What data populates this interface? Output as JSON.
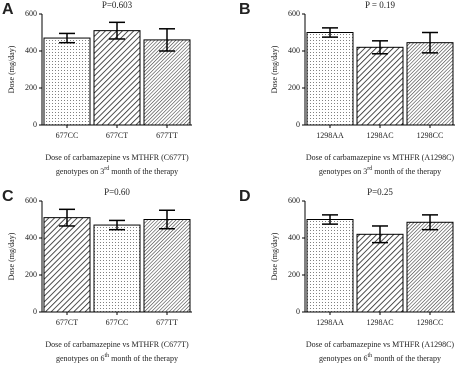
{
  "chart_data": [
    {
      "type": "bar",
      "panel": "A",
      "title": "P=0.603",
      "categories": [
        "677CC",
        "677CT",
        "677TT"
      ],
      "values": [
        470,
        510,
        460
      ],
      "errors": [
        25,
        45,
        60
      ],
      "patterns": [
        "dots",
        "hatch",
        "dense-hatch"
      ],
      "ylabel": "Dose (mg/day)",
      "xlabel": "Dose of carbamazepine vs MTHFR (C677T)",
      "xlabel_line2": [
        "genotypes on 3",
        "rd",
        " month of the therapy"
      ],
      "ylim": [
        0,
        600
      ],
      "yticks": [
        0,
        200,
        400,
        600
      ]
    },
    {
      "type": "bar",
      "panel": "B",
      "title": "P = 0.19",
      "categories": [
        "1298AA",
        "1298AC",
        "1298CC"
      ],
      "values": [
        500,
        420,
        445
      ],
      "errors": [
        25,
        35,
        55
      ],
      "patterns": [
        "dots",
        "hatch",
        "dense-hatch"
      ],
      "ylabel": "Dose (mg/day)",
      "xlabel": "Dose of carbamazepine vs MTHFR (A1298C)",
      "xlabel_line2": [
        "genotypes on 3",
        "rd",
        " month of the therapy"
      ],
      "ylim": [
        0,
        600
      ],
      "yticks": [
        0,
        200,
        400,
        600
      ]
    },
    {
      "type": "bar",
      "panel": "C",
      "title": "P=0.60",
      "categories": [
        "677CT",
        "677CC",
        "677TT"
      ],
      "values": [
        510,
        470,
        500
      ],
      "errors": [
        45,
        25,
        50
      ],
      "patterns": [
        "hatch",
        "dots",
        "dense-hatch"
      ],
      "ylabel": "Dose (mg/day)",
      "xlabel": "Dose of carbamazepine vs MTHFR (C677T)",
      "xlabel_line2": [
        "genotypes on 6",
        "th",
        " month of the therapy"
      ],
      "ylim": [
        0,
        600
      ],
      "yticks": [
        0,
        200,
        400,
        600
      ]
    },
    {
      "type": "bar",
      "panel": "D",
      "title": "P=0.25",
      "categories": [
        "1298AA",
        "1298AC",
        "1298CC"
      ],
      "values": [
        500,
        420,
        485
      ],
      "errors": [
        25,
        45,
        40
      ],
      "patterns": [
        "dots",
        "hatch",
        "dense-hatch"
      ],
      "ylabel": "Dose (mg/day)",
      "xlabel": "Dose of carbamazepine vs MTHFR (A1298C)",
      "xlabel_line2": [
        "genotypes on 6",
        "th",
        " month of the therapy"
      ],
      "ylim": [
        0,
        600
      ],
      "yticks": [
        0,
        200,
        400,
        600
      ]
    }
  ]
}
